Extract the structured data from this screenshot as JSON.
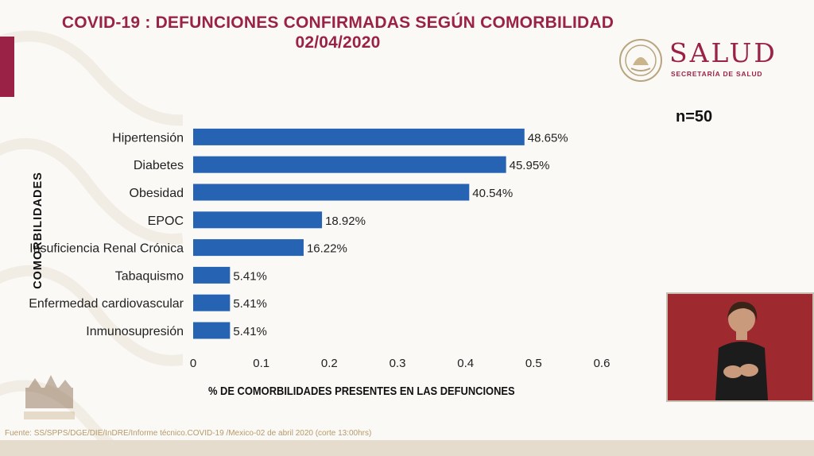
{
  "header": {
    "title_line1": "COVID-19 : DEFUNCIONES CONFIRMADAS SEGÚN COMORBILIDAD",
    "title_line2": "02/04/2020"
  },
  "logo": {
    "word": "SALUD",
    "subtitle": "SECRETARÍA DE SALUD"
  },
  "sample_size": "n=50",
  "source": "Fuente: SS/SPPS/DGE/DIE/InDRE/Informe técnico.COVID-19 /Mexico-02 de abril 2020 (corte 13:00hrs)",
  "colors": {
    "bar": "#2763b3",
    "accent": "#9b2247",
    "interpreter_bg": "#9e2a2f"
  },
  "chart_data": {
    "type": "bar",
    "orientation": "horizontal",
    "xlabel": "% DE COMORBILIDADES PRESENTES EN LAS DEFUNCIONES",
    "ylabel": "COMORBILIDADES",
    "xlim": [
      0,
      0.6
    ],
    "x_ticks": [
      "0",
      "0.1",
      "0.2",
      "0.3",
      "0.4",
      "0.5",
      "0.6"
    ],
    "grid": false,
    "categories": [
      "Hipertensión",
      "Diabetes",
      "Obesidad",
      "EPOC",
      "Insuficiencia Renal Crónica",
      "Tabaquismo",
      "Enfermedad cardiovascular",
      "Inmunosupresión"
    ],
    "values": [
      0.4865,
      0.4595,
      0.4054,
      0.1892,
      0.1622,
      0.0541,
      0.0541,
      0.0541
    ],
    "data_labels": [
      "48.65%",
      "45.95%",
      "40.54%",
      "18.92%",
      "16.22%",
      "5.41%",
      "5.41%",
      "5.41%"
    ]
  }
}
